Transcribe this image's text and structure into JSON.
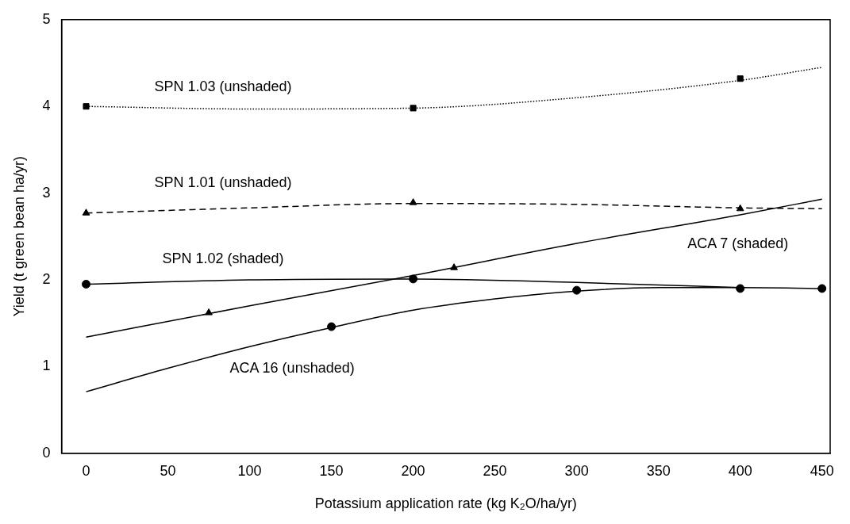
{
  "chart_data": {
    "type": "line",
    "xlabel": "Potassium application rate (kg K₂O/ha/yr)",
    "ylabel": "Yield (t green bean ha/yr)",
    "xlim": [
      -15,
      455
    ],
    "ylim": [
      0,
      5
    ],
    "xticks": [
      0,
      50,
      100,
      150,
      200,
      250,
      300,
      350,
      400,
      450
    ],
    "yticks": [
      0,
      1,
      2,
      3,
      4,
      5
    ],
    "grid": false,
    "legend": false,
    "series": [
      {
        "name": "SPN 1.03 (unshaded)",
        "color": "#000000",
        "line_style": "dotted",
        "marker": "none",
        "x": [
          0,
          100,
          200,
          300,
          400,
          450
        ],
        "values": [
          4.0,
          3.97,
          3.98,
          4.1,
          4.3,
          4.45
        ]
      },
      {
        "type": "scatter",
        "color": "#000000",
        "marker": "square",
        "x": [
          0,
          200,
          400
        ],
        "values": [
          4.0,
          3.98,
          4.32
        ]
      },
      {
        "name": "SPN 1.01 (unshaded)",
        "color": "#000000",
        "line_style": "dashed",
        "marker": "none",
        "x": [
          0,
          100,
          200,
          300,
          400,
          450
        ],
        "values": [
          2.77,
          2.83,
          2.88,
          2.87,
          2.83,
          2.82
        ]
      },
      {
        "type": "scatter",
        "color": "#000000",
        "marker": "triangle",
        "x": [
          0,
          200,
          400
        ],
        "values": [
          2.77,
          2.89,
          2.82
        ]
      },
      {
        "name": "SPN 1.02 (shaded)",
        "color": "#000000",
        "line_style": "solid",
        "marker": "none",
        "x": [
          0,
          100,
          200,
          300,
          400
        ],
        "values": [
          1.95,
          2.0,
          2.01,
          1.97,
          1.91
        ]
      },
      {
        "type": "scatter",
        "color": "#000000",
        "marker": "circle",
        "x": [
          0,
          200,
          400
        ],
        "values": [
          1.95,
          2.01,
          1.9
        ]
      },
      {
        "name": "ACA 7 (shaded)",
        "color": "#000000",
        "line_style": "solid",
        "marker": "none",
        "x": [
          0,
          100,
          200,
          300,
          400,
          450
        ],
        "values": [
          1.34,
          1.7,
          2.05,
          2.42,
          2.75,
          2.93
        ]
      },
      {
        "type": "scatter",
        "color": "#000000",
        "marker": "triangle",
        "x": [
          75,
          225
        ],
        "values": [
          1.62,
          2.14
        ]
      },
      {
        "name": "ACA 16 (unshaded)",
        "color": "#000000",
        "line_style": "solid",
        "marker": "none",
        "x": [
          0,
          50,
          100,
          150,
          200,
          250,
          300,
          350,
          400,
          450
        ],
        "values": [
          0.71,
          0.98,
          1.23,
          1.45,
          1.65,
          1.78,
          1.87,
          1.91,
          1.91,
          1.9
        ]
      },
      {
        "type": "scatter",
        "color": "#000000",
        "marker": "circle",
        "x": [
          150,
          300,
          450
        ],
        "values": [
          1.46,
          1.88,
          1.9
        ]
      }
    ]
  }
}
